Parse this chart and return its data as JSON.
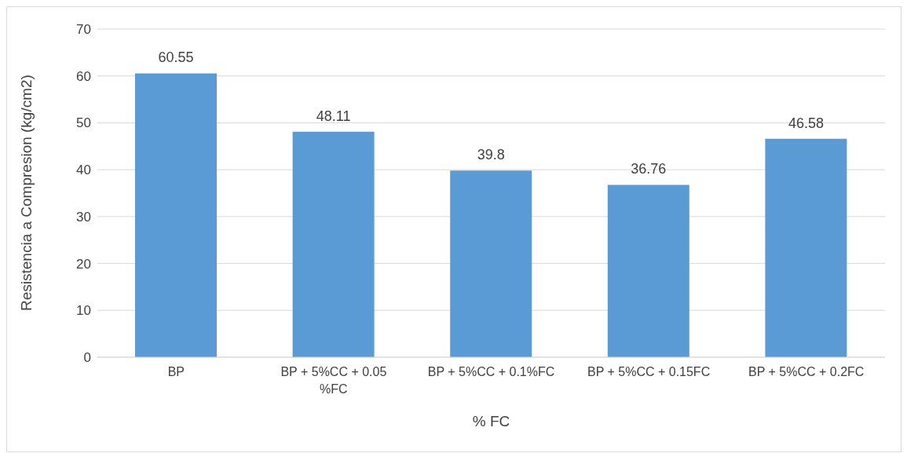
{
  "chart_data": {
    "type": "bar",
    "xlabel": "% FC",
    "ylabel": "Resistencia a Compresion (kg/cm2)",
    "categories": [
      "BP",
      "BP + 5%CC + 0.05 %FC",
      "BP + 5%CC + 0.1%FC",
      "BP + 5%CC + 0.15FC",
      "BP + 5%CC + 0.2FC"
    ],
    "values": [
      60.55,
      48.11,
      39.8,
      36.76,
      46.58
    ],
    "color": "#5b9bd5",
    "ylim": [
      0,
      70
    ],
    "yticks": [
      0,
      10,
      20,
      30,
      40,
      50,
      60,
      70
    ],
    "grid": "y",
    "legend": false,
    "data_labels": true
  }
}
